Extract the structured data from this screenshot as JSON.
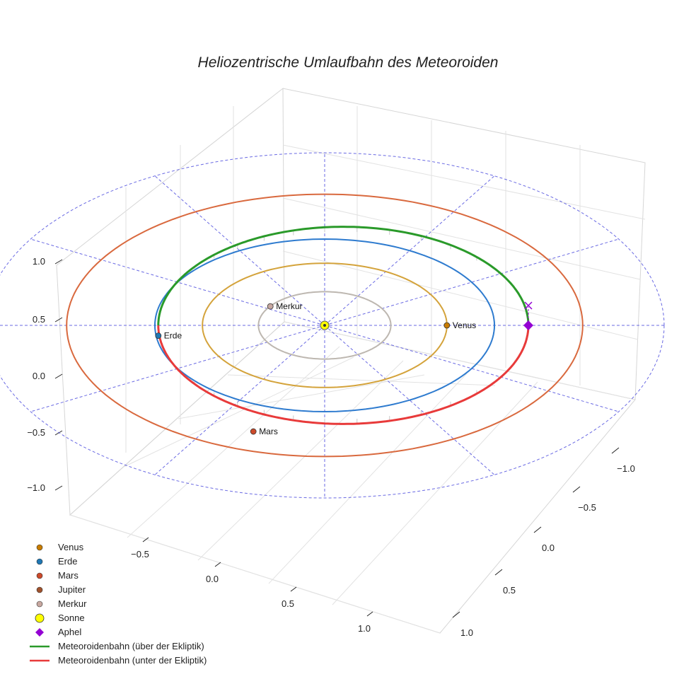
{
  "chart_data": {
    "type": "line",
    "title": "Heliozentrische Umlaufbahn des Meteoroiden",
    "axes": {
      "x_ticks": [
        "−0.5",
        "0.0",
        "0.5",
        "1.0"
      ],
      "y_ticks": [
        "−1.0",
        "−0.5",
        "0.0",
        "0.5",
        "1.0"
      ],
      "z_ticks": [
        "−1.0",
        "−0.5",
        "0.0",
        "0.5",
        "1.0"
      ],
      "xlabel": "",
      "ylabel": "",
      "zlabel": ""
    },
    "orbits": [
      {
        "name": "Merkur",
        "a": 0.39,
        "color": "#bdb7b0"
      },
      {
        "name": "Venus",
        "a": 0.72,
        "color": "#d4a33b"
      },
      {
        "name": "Erde",
        "a": 1.0,
        "color": "#2e7bcf"
      },
      {
        "name": "Mars",
        "a": 1.52,
        "color": "#d9693e"
      }
    ],
    "planets": [
      {
        "name": "Venus",
        "x": 0.72,
        "y": 0.0,
        "color": "#c87c00",
        "label": "Venus"
      },
      {
        "name": "Erde",
        "x": -0.98,
        "y": -0.12,
        "color": "#1f77b4",
        "label": "Erde"
      },
      {
        "name": "Mars",
        "x": -0.42,
        "y": -1.23,
        "color": "#cc4a2a",
        "label": "Mars"
      },
      {
        "name": "Merkur",
        "x": -0.32,
        "y": 0.22,
        "color": "#c8a8a0",
        "label": "Merkur"
      }
    ],
    "meteoroid": {
      "perihelion_q": 0.98,
      "aphelion_Q": 1.2,
      "above_ecliptic_color": "#2a9a2a",
      "below_ecliptic_color": "#e83a3a"
    },
    "aphel": {
      "x": 1.2,
      "y": 0.0,
      "z": 0.0
    }
  },
  "legend": [
    {
      "name": "Venus",
      "kind": "dot",
      "color": "#c87c00"
    },
    {
      "name": "Erde",
      "kind": "dot",
      "color": "#1f77b4"
    },
    {
      "name": "Mars",
      "kind": "dot",
      "color": "#cc4a2a"
    },
    {
      "name": "Jupiter",
      "kind": "dot",
      "color": "#a0522d"
    },
    {
      "name": "Merkur",
      "kind": "dot",
      "color": "#c8a8a0"
    },
    {
      "name": "Sonne",
      "kind": "bigdot",
      "color": "#ffff00"
    },
    {
      "name": "Aphel",
      "kind": "diamond",
      "color": "#9400d3"
    },
    {
      "name": "Meteoroidenbahn (über der Ekliptik)",
      "kind": "line",
      "color": "#2a9a2a"
    },
    {
      "name": "Meteoroidenbahn (unter der Ekliptik)",
      "kind": "line",
      "color": "#e83a3a"
    }
  ]
}
